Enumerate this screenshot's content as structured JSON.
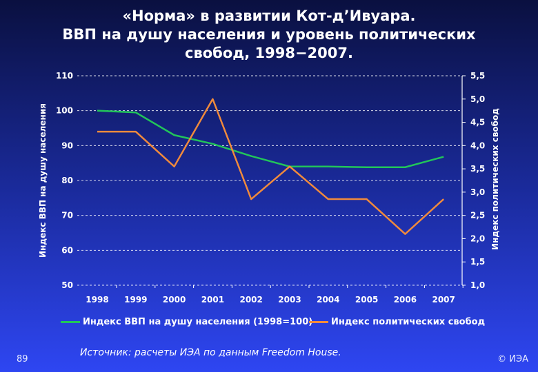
{
  "title": {
    "line1": "«Норма» в развитии Кот-д’Ивуара.",
    "line2": "ВВП на душу населения и уровень политических",
    "line3": "свобод, 1998−2007."
  },
  "footer": {
    "page_number": "89",
    "source": "Источник: расчеты ИЭА по данным Freedom House.",
    "copyright": "© ИЭА"
  },
  "colors": {
    "gdp_series": "#22c55a",
    "freedom_series": "#f08a3c",
    "gridline": "#ffffff",
    "text": "#ffffff"
  },
  "chart_data": {
    "type": "line",
    "categories": [
      "1998",
      "1999",
      "2000",
      "2001",
      "2002",
      "2003",
      "2004",
      "2005",
      "2006",
      "2007"
    ],
    "ylabel": "Индекс ВВП на душу населения",
    "y2label": "Индекс политических свобод",
    "ylim": [
      50,
      110
    ],
    "y2lim": [
      1.0,
      5.5
    ],
    "yticks": [
      "50",
      "60",
      "70",
      "80",
      "90",
      "100",
      "110"
    ],
    "y2ticks": [
      "1,0",
      "1,5",
      "2,0",
      "2,5",
      "3,0",
      "3,5",
      "4,0",
      "4,5",
      "5,0",
      "5,5"
    ],
    "grid": true,
    "legend_position": "bottom",
    "series": [
      {
        "name": "Индекс ВВП на душу населения (1998=100)",
        "axis": "left",
        "values": [
          100,
          99.5,
          93,
          90.5,
          87,
          84,
          84,
          83.8,
          83.8,
          86.8
        ]
      },
      {
        "name": "Индекс политических свобод",
        "axis": "right",
        "values": [
          4.3,
          4.3,
          3.55,
          5.0,
          2.85,
          3.55,
          2.85,
          2.85,
          2.1,
          2.85
        ]
      }
    ]
  }
}
